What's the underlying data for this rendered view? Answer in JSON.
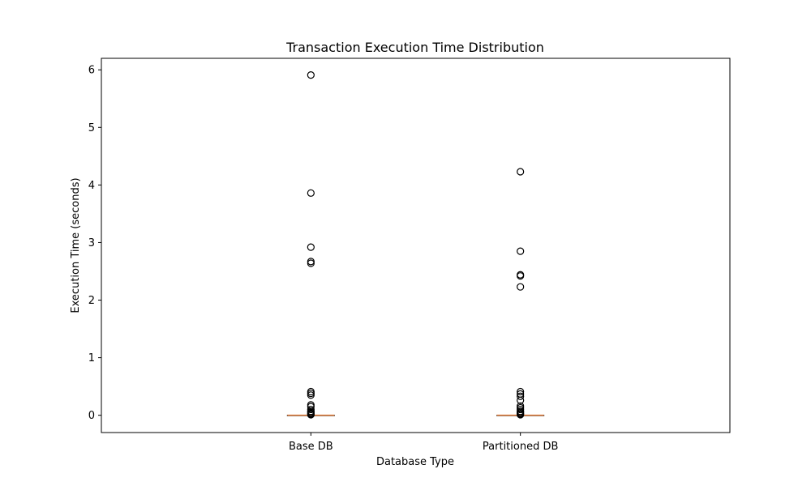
{
  "chart_data": {
    "type": "box",
    "title": "Transaction Execution Time Distribution",
    "xlabel": "Database Type",
    "ylabel": "Execution Time (seconds)",
    "categories": [
      "Base DB",
      "Partitioned DB"
    ],
    "ylim": [
      -0.3,
      6.2
    ],
    "yticks": [
      0,
      1,
      2,
      3,
      4,
      5,
      6
    ],
    "grid": false,
    "boxes": [
      {
        "category": "Base DB",
        "q1": 0.0,
        "median": 0.0,
        "q3": 0.0,
        "whisker_low": 0.0,
        "whisker_high": 0.0,
        "outliers": [
          5.91,
          3.86,
          2.92,
          2.67,
          2.64,
          0.41,
          0.38,
          0.35,
          0.18,
          0.15,
          0.1,
          0.07,
          0.05,
          0.03,
          0.02,
          0.01
        ]
      },
      {
        "category": "Partitioned DB",
        "q1": 0.0,
        "median": 0.0,
        "q3": 0.0,
        "whisker_low": 0.0,
        "whisker_high": 0.0,
        "outliers": [
          4.23,
          2.85,
          2.44,
          2.42,
          2.23,
          0.41,
          0.37,
          0.33,
          0.26,
          0.16,
          0.13,
          0.1,
          0.07,
          0.05,
          0.03,
          0.02,
          0.01
        ]
      }
    ],
    "colors": {
      "median": "#e07b39",
      "box": "#000000",
      "outlier_edge": "#000000"
    }
  }
}
